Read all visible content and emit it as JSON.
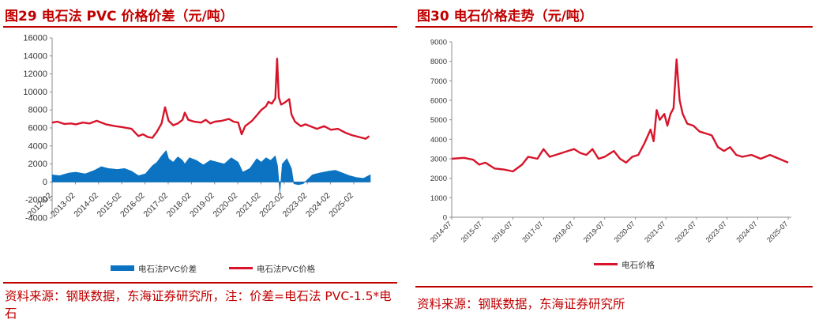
{
  "left_panel": {
    "title": "图29 电石法 PVC 价格价差（元/吨）",
    "source": "资料来源：钢联数据，东海证券研究所，注：价差=电石法 PVC-1.5*电石"
  },
  "right_panel": {
    "title": "图30 电石价格走势（元/吨）",
    "source": "资料来源：钢联数据，东海证券研究所"
  },
  "colors": {
    "red": "#d7142a",
    "blue": "#0b73c1",
    "title_red": "#c00000"
  },
  "chart_data": [
    {
      "type": "line",
      "title": "",
      "xlabel": "",
      "ylabel": "",
      "x_ticks": [
        "2012-02",
        "2013-02",
        "2014-02",
        "2015-02",
        "2016-02",
        "2017-02",
        "2018-02",
        "2019-02",
        "2020-02",
        "2021-02",
        "2022-02",
        "2023-02",
        "2024-02",
        "2025-02"
      ],
      "xlim": [
        2012.08,
        2025.8
      ],
      "ylim": [
        -4000,
        16000
      ],
      "y_ticks": [
        -4000,
        -2000,
        0,
        2000,
        4000,
        6000,
        8000,
        10000,
        12000,
        14000,
        16000
      ],
      "grid": false,
      "legend_position": "bottom",
      "series": [
        {
          "name": "电石法PVC价差",
          "kind": "area",
          "color": "#0b73c1",
          "points": [
            [
              2012.08,
              800
            ],
            [
              2012.4,
              700
            ],
            [
              2012.8,
              1000
            ],
            [
              2013.1,
              1100
            ],
            [
              2013.5,
              900
            ],
            [
              2013.9,
              1300
            ],
            [
              2014.2,
              1700
            ],
            [
              2014.5,
              1500
            ],
            [
              2014.9,
              1400
            ],
            [
              2015.2,
              1500
            ],
            [
              2015.5,
              1200
            ],
            [
              2015.8,
              700
            ],
            [
              2016.1,
              900
            ],
            [
              2016.4,
              1800
            ],
            [
              2016.6,
              2200
            ],
            [
              2016.8,
              2900
            ],
            [
              2017.0,
              3500
            ],
            [
              2017.1,
              2600
            ],
            [
              2017.3,
              2200
            ],
            [
              2017.5,
              2800
            ],
            [
              2017.7,
              2400
            ],
            [
              2017.8,
              2000
            ],
            [
              2018.0,
              2700
            ],
            [
              2018.3,
              2400
            ],
            [
              2018.6,
              1900
            ],
            [
              2018.9,
              2400
            ],
            [
              2019.2,
              2200
            ],
            [
              2019.5,
              2000
            ],
            [
              2019.8,
              2700
            ],
            [
              2020.1,
              2200
            ],
            [
              2020.3,
              1100
            ],
            [
              2020.6,
              1500
            ],
            [
              2020.9,
              2600
            ],
            [
              2021.1,
              2200
            ],
            [
              2021.3,
              2700
            ],
            [
              2021.5,
              2400
            ],
            [
              2021.7,
              2900
            ],
            [
              2021.8,
              1800
            ],
            [
              2021.9,
              -1200
            ],
            [
              2022.0,
              2000
            ],
            [
              2022.2,
              2600
            ],
            [
              2022.4,
              1500
            ],
            [
              2022.5,
              -200
            ],
            [
              2022.7,
              -300
            ],
            [
              2022.9,
              -200
            ],
            [
              2023.1,
              300
            ],
            [
              2023.3,
              800
            ],
            [
              2023.6,
              1000
            ],
            [
              2024.0,
              1200
            ],
            [
              2024.3,
              1300
            ],
            [
              2024.6,
              1000
            ],
            [
              2024.9,
              700
            ],
            [
              2025.2,
              500
            ],
            [
              2025.5,
              400
            ],
            [
              2025.8,
              800
            ]
          ]
        },
        {
          "name": "电石法PVC价格",
          "kind": "line",
          "color": "#d7142a",
          "points": [
            [
              2012.08,
              6600
            ],
            [
              2012.3,
              6700
            ],
            [
              2012.6,
              6450
            ],
            [
              2012.9,
              6500
            ],
            [
              2013.1,
              6400
            ],
            [
              2013.4,
              6600
            ],
            [
              2013.7,
              6500
            ],
            [
              2014.0,
              6800
            ],
            [
              2014.4,
              6400
            ],
            [
              2014.8,
              6200
            ],
            [
              2015.1,
              6100
            ],
            [
              2015.5,
              5900
            ],
            [
              2015.8,
              5100
            ],
            [
              2016.0,
              5300
            ],
            [
              2016.2,
              5000
            ],
            [
              2016.4,
              4900
            ],
            [
              2016.6,
              5600
            ],
            [
              2016.8,
              6500
            ],
            [
              2016.95,
              8300
            ],
            [
              2017.1,
              6800
            ],
            [
              2017.3,
              6300
            ],
            [
              2017.5,
              6500
            ],
            [
              2017.7,
              6900
            ],
            [
              2017.8,
              7700
            ],
            [
              2017.95,
              6900
            ],
            [
              2018.2,
              6700
            ],
            [
              2018.5,
              6600
            ],
            [
              2018.7,
              6900
            ],
            [
              2018.9,
              6500
            ],
            [
              2019.1,
              6700
            ],
            [
              2019.4,
              6800
            ],
            [
              2019.7,
              7000
            ],
            [
              2019.9,
              6700
            ],
            [
              2020.1,
              6600
            ],
            [
              2020.25,
              5300
            ],
            [
              2020.4,
              6200
            ],
            [
              2020.7,
              6800
            ],
            [
              2020.9,
              7400
            ],
            [
              2021.1,
              8000
            ],
            [
              2021.3,
              8400
            ],
            [
              2021.4,
              8900
            ],
            [
              2021.55,
              8700
            ],
            [
              2021.7,
              9300
            ],
            [
              2021.78,
              13700
            ],
            [
              2021.85,
              9400
            ],
            [
              2021.95,
              8600
            ],
            [
              2022.1,
              8800
            ],
            [
              2022.3,
              9200
            ],
            [
              2022.4,
              7500
            ],
            [
              2022.55,
              6700
            ],
            [
              2022.8,
              6200
            ],
            [
              2023.0,
              6400
            ],
            [
              2023.3,
              6100
            ],
            [
              2023.5,
              5900
            ],
            [
              2023.8,
              6200
            ],
            [
              2024.1,
              5800
            ],
            [
              2024.4,
              5900
            ],
            [
              2024.7,
              5500
            ],
            [
              2025.0,
              5200
            ],
            [
              2025.3,
              5000
            ],
            [
              2025.6,
              4800
            ],
            [
              2025.75,
              5100
            ]
          ]
        }
      ]
    },
    {
      "type": "line",
      "title": "",
      "xlabel": "",
      "ylabel": "",
      "x_ticks": [
        "2014-07",
        "2015-07",
        "2016-07",
        "2017-07",
        "2018-07",
        "2019-07",
        "2020-07",
        "2021-07",
        "2022-07",
        "2023-07",
        "2024-07",
        "2025-07"
      ],
      "xlim": [
        2014.5,
        2025.6
      ],
      "ylim": [
        0,
        9000
      ],
      "y_ticks": [
        0,
        1000,
        2000,
        3000,
        4000,
        5000,
        6000,
        7000,
        8000,
        9000
      ],
      "grid": false,
      "legend_position": "bottom",
      "series": [
        {
          "name": "电石价格",
          "kind": "line",
          "color": "#d7142a",
          "points": [
            [
              2014.5,
              3000
            ],
            [
              2014.9,
              3050
            ],
            [
              2015.2,
              2950
            ],
            [
              2015.4,
              2700
            ],
            [
              2015.6,
              2800
            ],
            [
              2015.9,
              2500
            ],
            [
              2016.2,
              2450
            ],
            [
              2016.5,
              2350
            ],
            [
              2016.8,
              2700
            ],
            [
              2017.0,
              3100
            ],
            [
              2017.3,
              3000
            ],
            [
              2017.5,
              3500
            ],
            [
              2017.7,
              3100
            ],
            [
              2017.9,
              3200
            ],
            [
              2018.1,
              3300
            ],
            [
              2018.3,
              3400
            ],
            [
              2018.5,
              3500
            ],
            [
              2018.7,
              3300
            ],
            [
              2018.9,
              3200
            ],
            [
              2019.1,
              3500
            ],
            [
              2019.3,
              3000
            ],
            [
              2019.5,
              3100
            ],
            [
              2019.8,
              3400
            ],
            [
              2020.0,
              3000
            ],
            [
              2020.2,
              2800
            ],
            [
              2020.4,
              3100
            ],
            [
              2020.6,
              3200
            ],
            [
              2020.8,
              3800
            ],
            [
              2021.0,
              4500
            ],
            [
              2021.1,
              3900
            ],
            [
              2021.2,
              5500
            ],
            [
              2021.3,
              5000
            ],
            [
              2021.45,
              5300
            ],
            [
              2021.55,
              4700
            ],
            [
              2021.65,
              5300
            ],
            [
              2021.75,
              5600
            ],
            [
              2021.85,
              8100
            ],
            [
              2021.95,
              6000
            ],
            [
              2022.05,
              5300
            ],
            [
              2022.2,
              4800
            ],
            [
              2022.4,
              4700
            ],
            [
              2022.6,
              4400
            ],
            [
              2022.8,
              4300
            ],
            [
              2023.0,
              4200
            ],
            [
              2023.2,
              3600
            ],
            [
              2023.4,
              3400
            ],
            [
              2023.6,
              3600
            ],
            [
              2023.8,
              3200
            ],
            [
              2024.0,
              3100
            ],
            [
              2024.3,
              3200
            ],
            [
              2024.6,
              3000
            ],
            [
              2024.9,
              3200
            ],
            [
              2025.2,
              3000
            ],
            [
              2025.5,
              2800
            ]
          ]
        }
      ]
    }
  ]
}
